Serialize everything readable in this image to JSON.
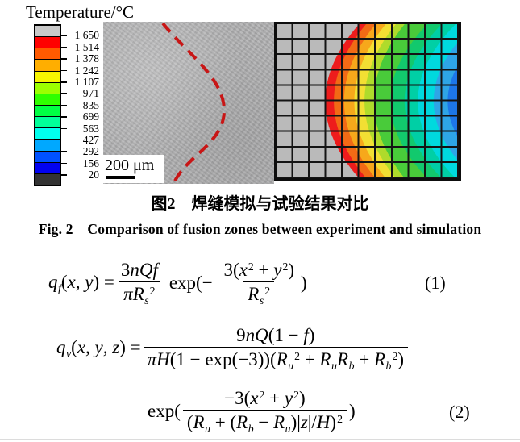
{
  "colorbar": {
    "title": "Temperature/°C",
    "values": [
      "1 650",
      "1 514",
      "1 378",
      "1 242",
      "1 107",
      "971",
      "835",
      "699",
      "563",
      "427",
      "292",
      "156",
      "20"
    ],
    "segments": [
      "#C8C8C8",
      "#FF0000",
      "#FF5A00",
      "#FFAE00",
      "#F7F400",
      "#9CFF00",
      "#2FFF00",
      "#00FF44",
      "#00FF99",
      "#00FFEE",
      "#00A8FF",
      "#0051FF",
      "#0202F0",
      "#333333"
    ]
  },
  "experiment": {
    "scale_label": "200 μm",
    "fusion_line_color": "#C81616"
  },
  "simulation": {
    "mesh_color": "#141414",
    "bands": {
      "gray": "#BABABA",
      "red": "#EE1C1C",
      "orangered": "#F26A15",
      "orange": "#F7A81B",
      "yellow": "#F2DF33",
      "chartreuse": "#AFDB2B",
      "green": "#49CB3A",
      "emerald": "#12C96D",
      "spring": "#00CFA5",
      "cyan": "#00D9DE",
      "sky": "#2EA5E6",
      "blue": "#1D76E8"
    }
  },
  "captions": {
    "zh": "图2　焊缝模拟与试验结果对比",
    "en": "Fig. 2　Comparison of fusion zones between experiment and simulation"
  },
  "equations": {
    "e1": {
      "number": "(1)",
      "lhs": [
        {
          "t": "q",
          "s": "i"
        },
        {
          "t": "f",
          "s": "sub"
        },
        {
          "t": "(",
          "s": "p"
        },
        {
          "t": "x",
          "s": "i"
        },
        {
          "t": ", ",
          "s": "p"
        },
        {
          "t": "y",
          "s": "i"
        },
        {
          "t": ") = ",
          "s": "p"
        }
      ],
      "f1num": [
        {
          "t": "3",
          "s": "p"
        },
        {
          "t": "nQf",
          "s": "i"
        }
      ],
      "f1den": [
        {
          "t": "π",
          "s": "i"
        },
        {
          "t": "R",
          "s": "i"
        },
        {
          "t": "s",
          "s": "sub"
        },
        {
          "t": "2",
          "s": "sup"
        }
      ],
      "mid": [
        {
          "t": "exp(− ",
          "s": "p"
        }
      ],
      "f2num": [
        {
          "t": "3(",
          "s": "p"
        },
        {
          "t": "x",
          "s": "i"
        },
        {
          "t": "2",
          "s": "sup"
        },
        {
          "t": " + ",
          "s": "p"
        },
        {
          "t": "y",
          "s": "i"
        },
        {
          "t": "2",
          "s": "sup"
        },
        {
          "t": ")",
          "s": "p"
        }
      ],
      "f2den": [
        {
          "t": "R",
          "s": "i"
        },
        {
          "t": "s",
          "s": "sub"
        },
        {
          "t": "2",
          "s": "sup"
        }
      ],
      "close": [
        {
          "t": ")",
          "s": "p"
        }
      ]
    },
    "e2": {
      "number": "(2)",
      "lhs": [
        {
          "t": "q",
          "s": "i"
        },
        {
          "t": "v",
          "s": "sub"
        },
        {
          "t": "(",
          "s": "p"
        },
        {
          "t": "x",
          "s": "i"
        },
        {
          "t": ", ",
          "s": "p"
        },
        {
          "t": "y",
          "s": "i"
        },
        {
          "t": ", ",
          "s": "p"
        },
        {
          "t": "z",
          "s": "i"
        },
        {
          "t": ") = ",
          "s": "p"
        }
      ],
      "f1num": [
        {
          "t": "9",
          "s": "p"
        },
        {
          "t": "nQ",
          "s": "i"
        },
        {
          "t": "(1 − ",
          "s": "p"
        },
        {
          "t": "f",
          "s": "i"
        },
        {
          "t": ")",
          "s": "p"
        }
      ],
      "f1den": [
        {
          "t": "π",
          "s": "i"
        },
        {
          "t": "H",
          "s": "i"
        },
        {
          "t": "(1 − exp(−3))(",
          "s": "p"
        },
        {
          "t": "R",
          "s": "i"
        },
        {
          "t": "u",
          "s": "sub"
        },
        {
          "t": "2",
          "s": "sup"
        },
        {
          "t": " + ",
          "s": "p"
        },
        {
          "t": "R",
          "s": "i"
        },
        {
          "t": "u",
          "s": "sub"
        },
        {
          "t": "R",
          "s": "i"
        },
        {
          "t": "b",
          "s": "sub"
        },
        {
          "t": " + ",
          "s": "p"
        },
        {
          "t": "R",
          "s": "i"
        },
        {
          "t": "b",
          "s": "sub"
        },
        {
          "t": "2",
          "s": "sup"
        },
        {
          "t": ")",
          "s": "p"
        }
      ],
      "exp": [
        {
          "t": "exp(",
          "s": "p"
        }
      ],
      "f2num": [
        {
          "t": "−3(",
          "s": "p"
        },
        {
          "t": "x",
          "s": "i"
        },
        {
          "t": "2",
          "s": "sup"
        },
        {
          "t": " + ",
          "s": "p"
        },
        {
          "t": "y",
          "s": "i"
        },
        {
          "t": "2",
          "s": "sup"
        },
        {
          "t": ")",
          "s": "p"
        }
      ],
      "f2den": [
        {
          "t": "(",
          "s": "p"
        },
        {
          "t": "R",
          "s": "i"
        },
        {
          "t": "u",
          "s": "sub"
        },
        {
          "t": " + (",
          "s": "p"
        },
        {
          "t": "R",
          "s": "i"
        },
        {
          "t": "b",
          "s": "sub"
        },
        {
          "t": " − ",
          "s": "p"
        },
        {
          "t": "R",
          "s": "i"
        },
        {
          "t": "u",
          "s": "sub"
        },
        {
          "t": ")|",
          "s": "p"
        },
        {
          "t": "z",
          "s": "i"
        },
        {
          "t": "|/",
          "s": "p"
        },
        {
          "t": "H",
          "s": "i"
        },
        {
          "t": ")",
          "s": "p"
        },
        {
          "t": "2",
          "s": "sup"
        }
      ],
      "close": [
        {
          "t": ")",
          "s": "p"
        }
      ]
    }
  }
}
